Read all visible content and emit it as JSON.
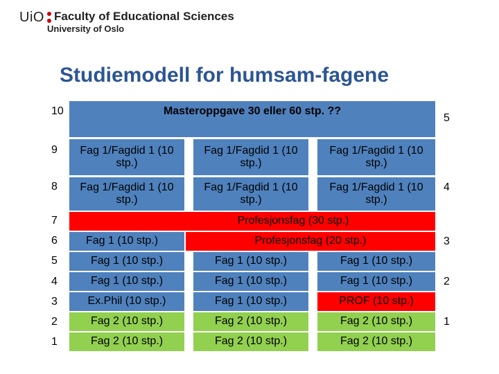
{
  "header": {
    "uio": "UiO",
    "faculty": "Faculty of Educational Sciences",
    "university": "University of Oslo"
  },
  "title": "Studiemodell for humsam-fagene",
  "levels": [
    "10",
    "9",
    "8",
    "7",
    "6",
    "5",
    "4",
    "3",
    "2",
    "1"
  ],
  "right_numbers": [
    "5",
    "4",
    "3",
    "2",
    "1"
  ],
  "rows": {
    "r10": {
      "master": "Masteroppgave 30 eller 60 stp. ??"
    },
    "r9": [
      "Fag 1/Fagdid 1 (10 stp.)",
      "Fag 1/Fagdid 1 (10 stp.)",
      "Fag 1/Fagdid 1 (10 stp.)"
    ],
    "r8": [
      "Fag 1/Fagdid 1 (10 stp.)",
      "Fag 1/Fagdid 1 (10 stp.)",
      "Fag 1/Fagdid 1 (10 stp.)"
    ],
    "r7": {
      "prof": "Profesjonsfag (30 stp.)"
    },
    "r6": {
      "fag": "Fag 1 (10 stp.)",
      "prof": "Profesjonsfag (20 stp.)"
    },
    "r5": [
      "Fag 1 (10 stp.)",
      "Fag 1 (10 stp.)",
      "Fag 1 (10 stp.)"
    ],
    "r4": [
      "Fag 1 (10 stp.)",
      "Fag 1 (10 stp.)",
      "Fag 1 (10 stp.)"
    ],
    "r3": [
      "Ex.Phil (10 stp.)",
      "Fag 1 (10 stp.)",
      "PROF (10 stp.)"
    ],
    "r2": [
      "Fag 2 (10 stp.)",
      "Fag 2 (10 stp.)",
      "Fag 2 (10 stp.)"
    ],
    "r1": [
      "Fag 2 (10 stp.)",
      "Fag 2 (10 stp.)",
      "Fag 2 (10 stp.)"
    ]
  },
  "colors": {
    "blue": "#4f81bd",
    "red": "#ff0000",
    "green": "#92d050",
    "title": "#2c5593",
    "logo_dot": "#cc0000"
  }
}
